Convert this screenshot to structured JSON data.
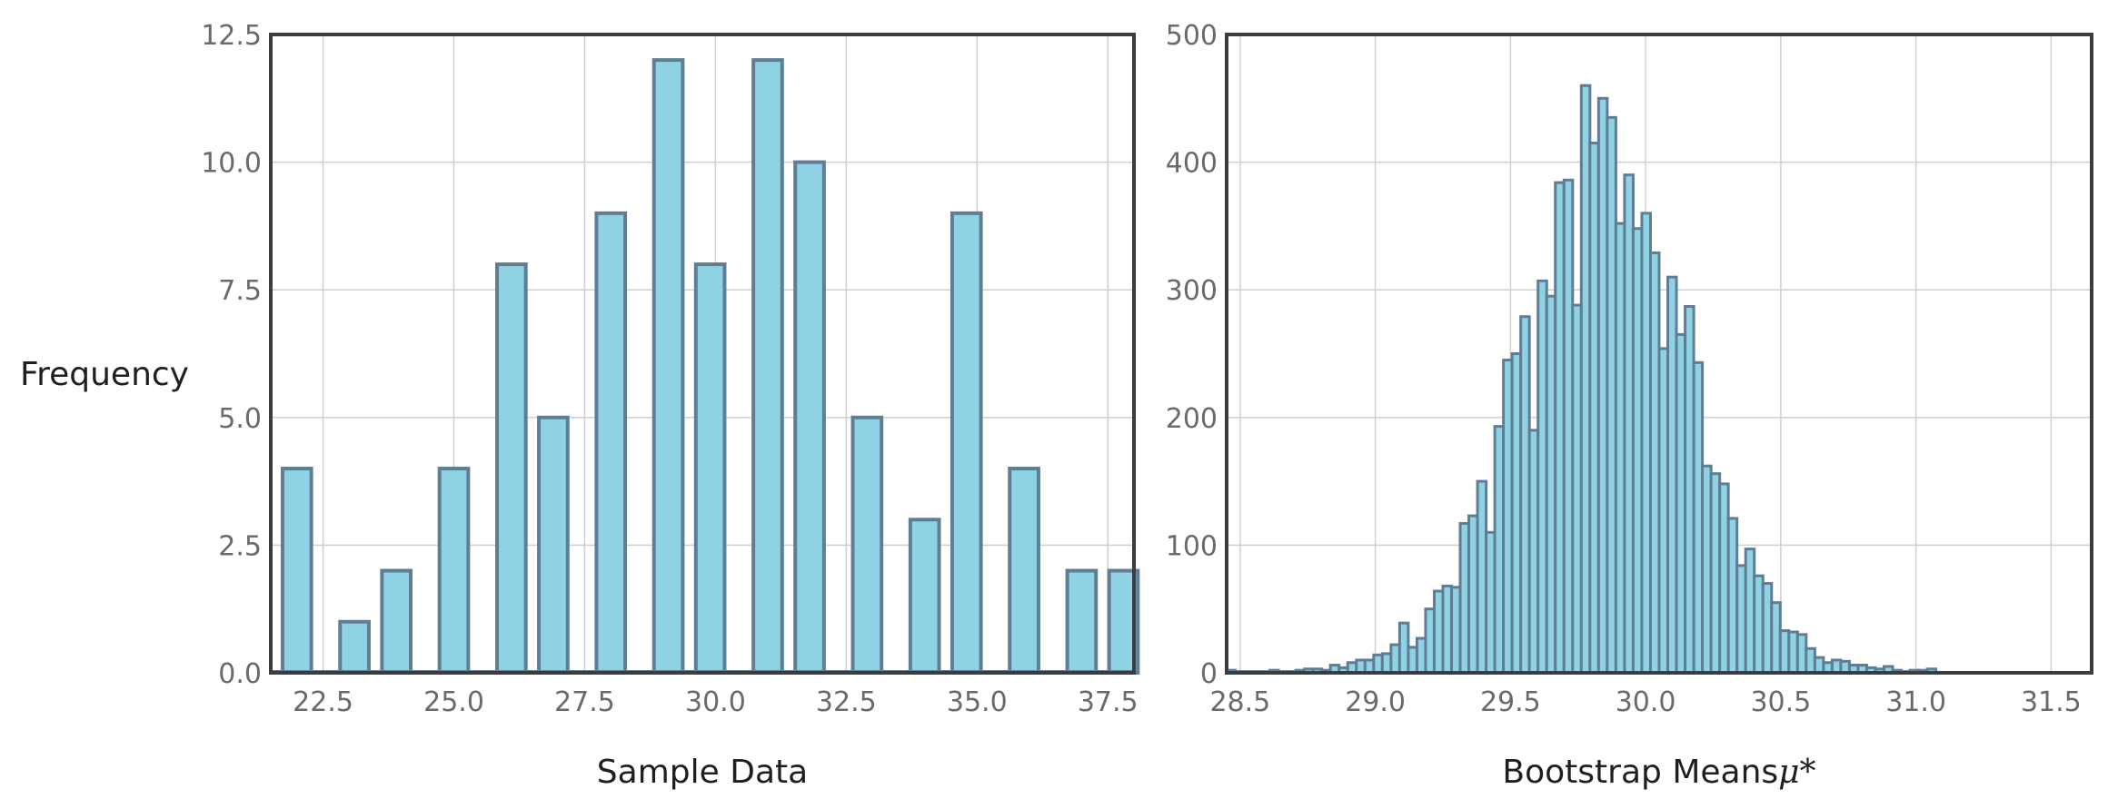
{
  "chart_data": [
    {
      "type": "bar",
      "xlabel": "Sample Data",
      "ylabel": "Frequency",
      "xlim": [
        21.5,
        38.0
      ],
      "ylim": [
        0,
        12.5
      ],
      "xticks": [
        "22.5",
        "25.0",
        "27.5",
        "30.0",
        "32.5",
        "35.0",
        "37.5"
      ],
      "yticks": [
        "0.0",
        "2.5",
        "5.0",
        "7.5",
        "10.0",
        "12.5"
      ],
      "grid": true,
      "bin_width": 0.55,
      "bins": [
        {
          "x": 22.0,
          "value": 4
        },
        {
          "x": 23.1,
          "value": 1
        },
        {
          "x": 23.9,
          "value": 2
        },
        {
          "x": 25.0,
          "value": 4
        },
        {
          "x": 26.1,
          "value": 8
        },
        {
          "x": 26.9,
          "value": 5
        },
        {
          "x": 28.0,
          "value": 9
        },
        {
          "x": 29.1,
          "value": 12
        },
        {
          "x": 29.9,
          "value": 8
        },
        {
          "x": 31.0,
          "value": 12
        },
        {
          "x": 31.8,
          "value": 10
        },
        {
          "x": 32.9,
          "value": 5
        },
        {
          "x": 34.0,
          "value": 3
        },
        {
          "x": 34.8,
          "value": 9
        },
        {
          "x": 35.9,
          "value": 4
        },
        {
          "x": 37.0,
          "value": 2
        },
        {
          "x": 37.8,
          "value": 2
        }
      ]
    },
    {
      "type": "bar",
      "xlabel": "Bootstrap Means",
      "xlabel_symbol": "μ*",
      "xlim": [
        28.45,
        31.65
      ],
      "ylim": [
        0,
        500
      ],
      "xticks": [
        "28.5",
        "29.0",
        "29.5",
        "30.0",
        "30.5",
        "31.0",
        "31.5"
      ],
      "yticks": [
        "0",
        "100",
        "200",
        "300",
        "400",
        "500"
      ],
      "grid": true,
      "bin_start": 28.45,
      "bin_width": 0.032,
      "values": [
        2,
        1,
        1,
        1,
        1,
        2,
        1,
        1,
        2,
        3,
        3,
        2,
        6,
        4,
        8,
        10,
        10,
        14,
        15,
        22,
        39,
        20,
        27,
        50,
        64,
        68,
        67,
        117,
        123,
        150,
        110,
        193,
        245,
        250,
        279,
        190,
        307,
        295,
        384,
        386,
        288,
        460,
        415,
        450,
        435,
        352,
        390,
        348,
        360,
        329,
        254,
        310,
        265,
        287,
        243,
        162,
        156,
        148,
        121,
        84,
        97,
        76,
        70,
        55,
        33,
        32,
        30,
        19,
        12,
        8,
        10,
        9,
        6,
        6,
        4,
        3,
        5,
        2,
        1,
        2,
        2,
        3
      ]
    }
  ]
}
